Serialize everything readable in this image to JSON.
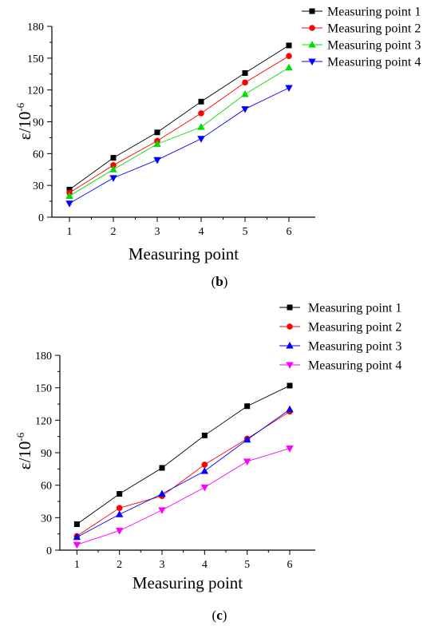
{
  "chart_data": [
    {
      "type": "line",
      "panel_label": {
        "open": "(",
        "letter": "b",
        "close": ")"
      },
      "xlabel": "Measuring point",
      "ylabel": {
        "main": "ε/10",
        "exponent": "-6"
      },
      "x": [
        1,
        2,
        3,
        4,
        5,
        6
      ],
      "xlim": [
        0.6,
        6.6
      ],
      "ylim": [
        0,
        180
      ],
      "yticks": [
        0,
        30,
        60,
        90,
        120,
        150,
        180
      ],
      "grid": false,
      "legend_position": "top-right",
      "series": [
        {
          "name": "Measuring point 1",
          "color": "#000000",
          "marker": "square",
          "values": [
            26,
            56,
            80,
            109,
            136,
            162
          ]
        },
        {
          "name": "Measuring point 2",
          "color": "#ff0000",
          "marker": "circle",
          "values": [
            23,
            49,
            72,
            98,
            127,
            152
          ]
        },
        {
          "name": "Measuring point 3",
          "color": "#00dd00",
          "marker": "triangle-up",
          "values": [
            20,
            45,
            69,
            85,
            116,
            141
          ]
        },
        {
          "name": "Measuring point 4",
          "color": "#0000ff",
          "marker": "triangle-down",
          "values": [
            13,
            37,
            54,
            74,
            102,
            122
          ]
        }
      ]
    },
    {
      "type": "line",
      "panel_label": {
        "open": "(",
        "letter": "c",
        "close": ")"
      },
      "xlabel": "Measuring point",
      "ylabel": {
        "main": "ε/10",
        "exponent": "-6"
      },
      "x": [
        1,
        2,
        3,
        4,
        5,
        6
      ],
      "xlim": [
        0.6,
        6.6
      ],
      "ylim": [
        0,
        180
      ],
      "yticks": [
        0,
        30,
        60,
        90,
        120,
        150,
        180
      ],
      "grid": false,
      "legend_position": "top-right",
      "series": [
        {
          "name": "Measuring point 1",
          "color": "#000000",
          "marker": "square",
          "values": [
            24,
            52,
            76,
            106,
            133,
            152
          ]
        },
        {
          "name": "Measuring point 2",
          "color": "#ff0000",
          "marker": "circle",
          "values": [
            13,
            39,
            50,
            79,
            103,
            128
          ]
        },
        {
          "name": "Measuring point 3",
          "color": "#0000ff",
          "marker": "triangle-up",
          "values": [
            12,
            33,
            52,
            73,
            102,
            130
          ]
        },
        {
          "name": "Measuring point 4",
          "color": "#ff00ff",
          "marker": "triangle-down",
          "values": [
            5,
            18,
            37,
            58,
            82,
            94
          ]
        }
      ]
    }
  ]
}
